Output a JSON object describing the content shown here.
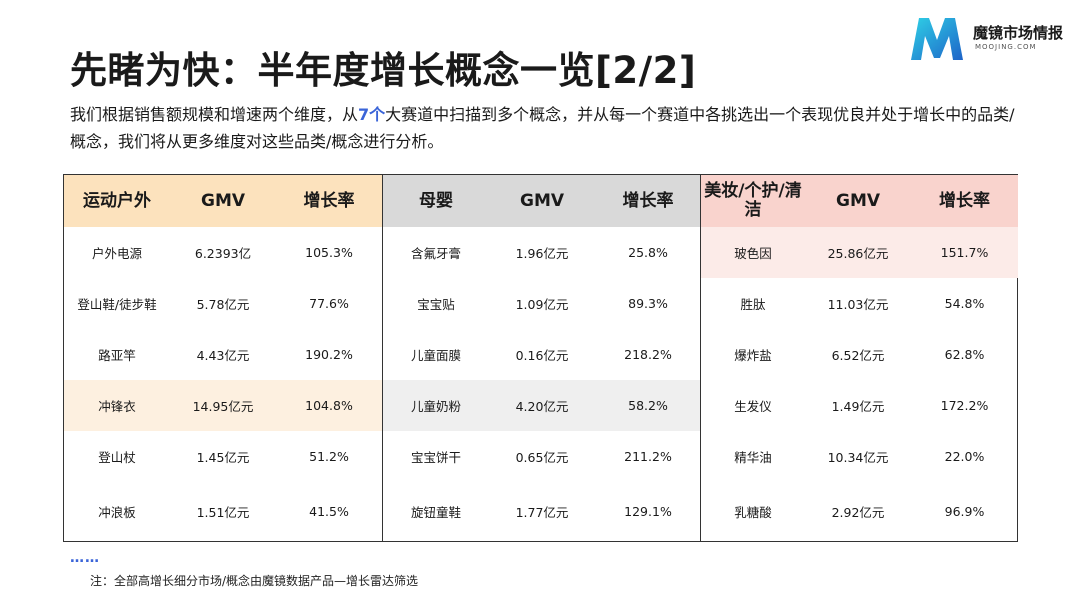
{
  "brand": {
    "name": "魔镜市场情报",
    "domain": "MOOJING.COM"
  },
  "title": "先睹为快：半年度增长概念一览[2/2]",
  "intro": {
    "before": "我们根据销售额规模和增速两个维度，从",
    "highlight": "7个",
    "after": "大赛道中扫描到多个概念，并从每一个赛道中各挑选出一个表现优良并处于增长中的品类/概念，我们将从更多维度对这些品类/概念进行分析。"
  },
  "tables": [
    {
      "headers": [
        "运动户外",
        "GMV",
        "增长率"
      ],
      "rows": [
        [
          "户外电源",
          "6.2393亿",
          "105.3%"
        ],
        [
          "登山鞋/徒步鞋",
          "5.78亿元",
          "77.6%"
        ],
        [
          "路亚竿",
          "4.43亿元",
          "190.2%"
        ],
        [
          "冲锋衣",
          "14.95亿元",
          "104.8%"
        ],
        [
          "登山杖",
          "1.45亿元",
          "51.2%"
        ],
        [
          "冲浪板",
          "1.51亿元",
          "41.5%"
        ]
      ]
    },
    {
      "headers": [
        "母婴",
        "GMV",
        "增长率"
      ],
      "rows": [
        [
          "含氟牙膏",
          "1.96亿元",
          "25.8%"
        ],
        [
          "宝宝贴",
          "1.09亿元",
          "89.3%"
        ],
        [
          "儿童面膜",
          "0.16亿元",
          "218.2%"
        ],
        [
          "儿童奶粉",
          "4.20亿元",
          "58.2%"
        ],
        [
          "宝宝饼干",
          "0.65亿元",
          "211.2%"
        ],
        [
          "旋钮童鞋",
          "1.77亿元",
          "129.1%"
        ]
      ]
    },
    {
      "headers": [
        "美妆/个护/清洁",
        "GMV",
        "增长率"
      ],
      "rows": [
        [
          "玻色因",
          "25.86亿元",
          "151.7%"
        ],
        [
          "胜肽",
          "11.03亿元",
          "54.8%"
        ],
        [
          "爆炸盐",
          "6.52亿元",
          "62.8%"
        ],
        [
          "生发仪",
          "1.49亿元",
          "172.2%"
        ],
        [
          "精华油",
          "10.34亿元",
          "22.0%"
        ],
        [
          "乳糖酸",
          "2.92亿元",
          "96.9%"
        ]
      ]
    }
  ],
  "dots": "……",
  "note": "注：全部高增长细分市场/概念由魔镜数据产品—增长雷达筛选"
}
